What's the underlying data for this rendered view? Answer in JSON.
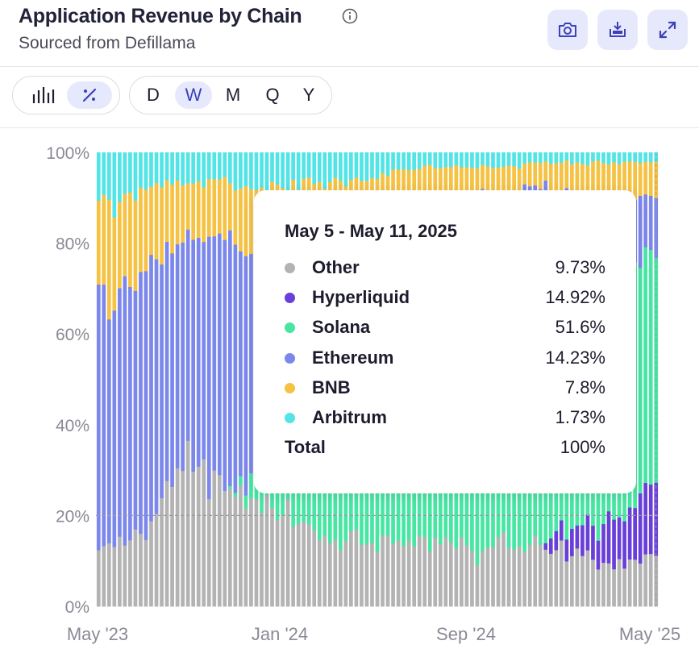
{
  "header": {
    "title": "Application Revenue by Chain",
    "subtitle": "Sourced from Defillama",
    "actions": [
      {
        "name": "camera-button",
        "icon": "camera-icon"
      },
      {
        "name": "download-button",
        "icon": "download-icon"
      },
      {
        "name": "expand-button",
        "icon": "expand-icon"
      }
    ]
  },
  "toolbar": {
    "views": [
      {
        "icon": "bar-chart-icon",
        "active": false
      },
      {
        "icon": "percent-icon",
        "active": true
      }
    ],
    "periods": [
      {
        "label": "D",
        "active": false
      },
      {
        "label": "W",
        "active": true
      },
      {
        "label": "M",
        "active": false
      },
      {
        "label": "Q",
        "active": false
      },
      {
        "label": "Y",
        "active": false
      }
    ]
  },
  "tooltip": {
    "date": "May 5 - May 11, 2025",
    "rows": [
      {
        "name": "Other",
        "value": "9.73%",
        "color": "#b3b3b3"
      },
      {
        "name": "Hyperliquid",
        "value": "14.92%",
        "color": "#6a3fd9"
      },
      {
        "name": "Solana",
        "value": "51.6%",
        "color": "#47e6a3"
      },
      {
        "name": "Ethereum",
        "value": "14.23%",
        "color": "#7b87ea"
      },
      {
        "name": "BNB",
        "value": "7.8%",
        "color": "#f5c243"
      },
      {
        "name": "Arbitrum",
        "value": "1.73%",
        "color": "#52e4e6"
      }
    ],
    "total_label": "Total",
    "total_value": "100%"
  },
  "chart_data": {
    "type": "bar",
    "stacked": true,
    "normalized": true,
    "x_start": "2023-05-01",
    "x_end": "2025-05-11",
    "x_step": "week",
    "xticks": [
      "May '23",
      "Jan '24",
      "Sep '24",
      "May '25"
    ],
    "yticks": [
      "0%",
      "20%",
      "40%",
      "60%",
      "80%",
      "100%"
    ],
    "ylim": [
      0,
      100
    ],
    "hover_line_y": 20,
    "series": [
      {
        "name": "Other",
        "color": "#b3b3b3",
        "anchors": [
          [
            0,
            12
          ],
          [
            4,
            13
          ],
          [
            8,
            16
          ],
          [
            12,
            22
          ],
          [
            16,
            31
          ],
          [
            20,
            30
          ],
          [
            24,
            27
          ],
          [
            28,
            24
          ],
          [
            32,
            23
          ],
          [
            36,
            20
          ],
          [
            40,
            16
          ],
          [
            44,
            13
          ],
          [
            48,
            14
          ],
          [
            52,
            13
          ],
          [
            56,
            14
          ],
          [
            60,
            12
          ],
          [
            64,
            14
          ],
          [
            68,
            13
          ],
          [
            72,
            11
          ],
          [
            76,
            14
          ],
          [
            80,
            12
          ],
          [
            84,
            13
          ],
          [
            88,
            12
          ],
          [
            92,
            10
          ],
          [
            96,
            8
          ],
          [
            100,
            9
          ],
          [
            104,
            11
          ]
        ]
      },
      {
        "name": "Hyperliquid",
        "color": "#6a3fd9",
        "anchors": [
          [
            0,
            0
          ],
          [
            84,
            0
          ],
          [
            86,
            3
          ],
          [
            90,
            5
          ],
          [
            94,
            7
          ],
          [
            98,
            9
          ],
          [
            102,
            11
          ],
          [
            104,
            15
          ]
        ]
      },
      {
        "name": "Solana",
        "color": "#47e6a3",
        "anchors": [
          [
            0,
            0
          ],
          [
            24,
            0
          ],
          [
            26,
            1
          ],
          [
            28,
            3
          ],
          [
            32,
            10
          ],
          [
            36,
            15
          ],
          [
            40,
            19
          ],
          [
            44,
            26
          ],
          [
            48,
            28
          ],
          [
            52,
            32
          ],
          [
            56,
            38
          ],
          [
            60,
            42
          ],
          [
            64,
            48
          ],
          [
            68,
            50
          ],
          [
            72,
            55
          ],
          [
            76,
            57
          ],
          [
            80,
            60
          ],
          [
            84,
            62
          ],
          [
            88,
            60
          ],
          [
            92,
            52
          ],
          [
            96,
            50
          ],
          [
            100,
            52
          ],
          [
            104,
            52
          ]
        ]
      },
      {
        "name": "Ethereum",
        "color": "#7b87ea",
        "anchors": [
          [
            0,
            55
          ],
          [
            2,
            52
          ],
          [
            4,
            56
          ],
          [
            8,
            58
          ],
          [
            12,
            55
          ],
          [
            16,
            48
          ],
          [
            20,
            51
          ],
          [
            24,
            54
          ],
          [
            28,
            51
          ],
          [
            32,
            47
          ],
          [
            36,
            45
          ],
          [
            40,
            43
          ],
          [
            44,
            36
          ],
          [
            48,
            36
          ],
          [
            52,
            32
          ],
          [
            56,
            27
          ],
          [
            60,
            23
          ],
          [
            64,
            18
          ],
          [
            68,
            18
          ],
          [
            72,
            19
          ],
          [
            76,
            16
          ],
          [
            80,
            15
          ],
          [
            84,
            13
          ],
          [
            88,
            11
          ],
          [
            92,
            13
          ],
          [
            96,
            13
          ],
          [
            100,
            14
          ],
          [
            104,
            14
          ]
        ]
      },
      {
        "name": "BNB",
        "color": "#f5c243",
        "anchors": [
          [
            0,
            22
          ],
          [
            4,
            20
          ],
          [
            8,
            16
          ],
          [
            12,
            15
          ],
          [
            16,
            12
          ],
          [
            20,
            12
          ],
          [
            24,
            12
          ],
          [
            28,
            13
          ],
          [
            32,
            12
          ],
          [
            36,
            11
          ],
          [
            40,
            12
          ],
          [
            44,
            14
          ],
          [
            48,
            13
          ],
          [
            52,
            12
          ],
          [
            56,
            10
          ],
          [
            60,
            9
          ],
          [
            64,
            8
          ],
          [
            68,
            7
          ],
          [
            72,
            6
          ],
          [
            76,
            5
          ],
          [
            80,
            5
          ],
          [
            84,
            5
          ],
          [
            88,
            6
          ],
          [
            92,
            8
          ],
          [
            96,
            10
          ],
          [
            100,
            8
          ],
          [
            104,
            8
          ]
        ]
      },
      {
        "name": "Arbitrum",
        "color": "#52e4e6",
        "anchors": [
          [
            0,
            10
          ],
          [
            4,
            12
          ],
          [
            8,
            8
          ],
          [
            12,
            6
          ],
          [
            16,
            6
          ],
          [
            20,
            7
          ],
          [
            24,
            6
          ],
          [
            28,
            8
          ],
          [
            32,
            8
          ],
          [
            36,
            7
          ],
          [
            40,
            6
          ],
          [
            44,
            6
          ],
          [
            48,
            6
          ],
          [
            52,
            5
          ],
          [
            56,
            4
          ],
          [
            60,
            3
          ],
          [
            64,
            3
          ],
          [
            68,
            3
          ],
          [
            72,
            3
          ],
          [
            76,
            3
          ],
          [
            80,
            3
          ],
          [
            84,
            2
          ],
          [
            88,
            2
          ],
          [
            92,
            2
          ],
          [
            96,
            2
          ],
          [
            100,
            2
          ],
          [
            104,
            2
          ]
        ]
      }
    ]
  }
}
